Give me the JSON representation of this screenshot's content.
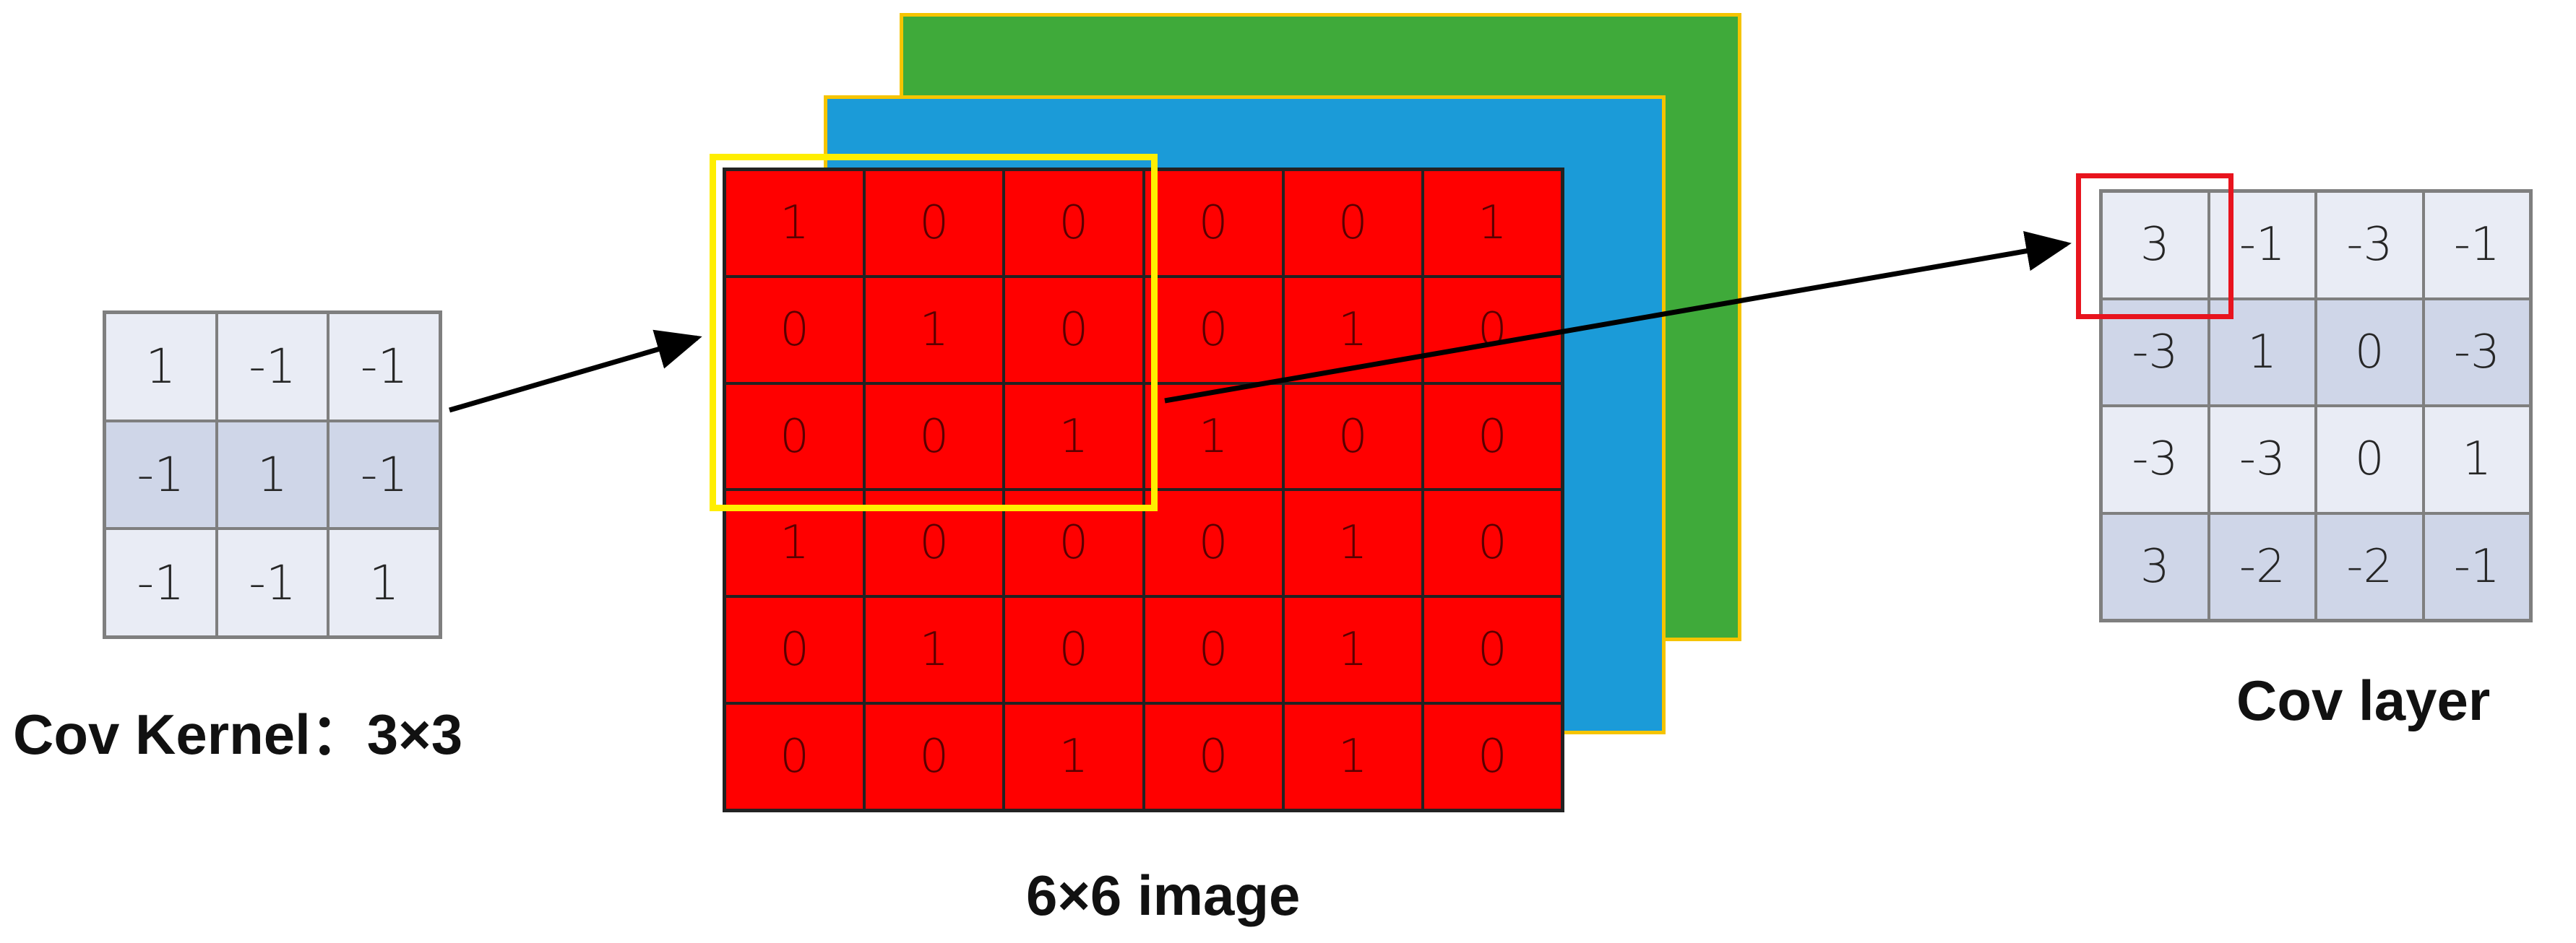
{
  "kernel": {
    "label": "Cov Kernel：3×3",
    "rows": [
      [
        "1",
        "-1",
        "-1"
      ],
      [
        "-1",
        "1",
        "-1"
      ],
      [
        "-1",
        "-1",
        "1"
      ]
    ]
  },
  "image": {
    "label": "6×6  image",
    "layer_colors": {
      "front": "#ff0000",
      "middle": "#1b9bd8",
      "back": "#3faa3a",
      "frame": "#f5c400"
    },
    "window_color": "#ffee00",
    "rows": [
      [
        "1",
        "0",
        "0",
        "0",
        "0",
        "1"
      ],
      [
        "0",
        "1",
        "0",
        "0",
        "1",
        "0"
      ],
      [
        "0",
        "0",
        "1",
        "1",
        "0",
        "0"
      ],
      [
        "1",
        "0",
        "0",
        "0",
        "1",
        "0"
      ],
      [
        "0",
        "1",
        "0",
        "0",
        "1",
        "0"
      ],
      [
        "0",
        "0",
        "1",
        "0",
        "1",
        "0"
      ]
    ]
  },
  "output": {
    "label": "Cov layer",
    "highlight_color": "#e8141e",
    "rows": [
      [
        "3",
        "-1",
        "-3",
        "-1"
      ],
      [
        "-3",
        "1",
        "0",
        "-3"
      ],
      [
        "-3",
        "-3",
        "0",
        "1"
      ],
      [
        "3",
        "-2",
        "-2",
        "-1"
      ]
    ]
  }
}
